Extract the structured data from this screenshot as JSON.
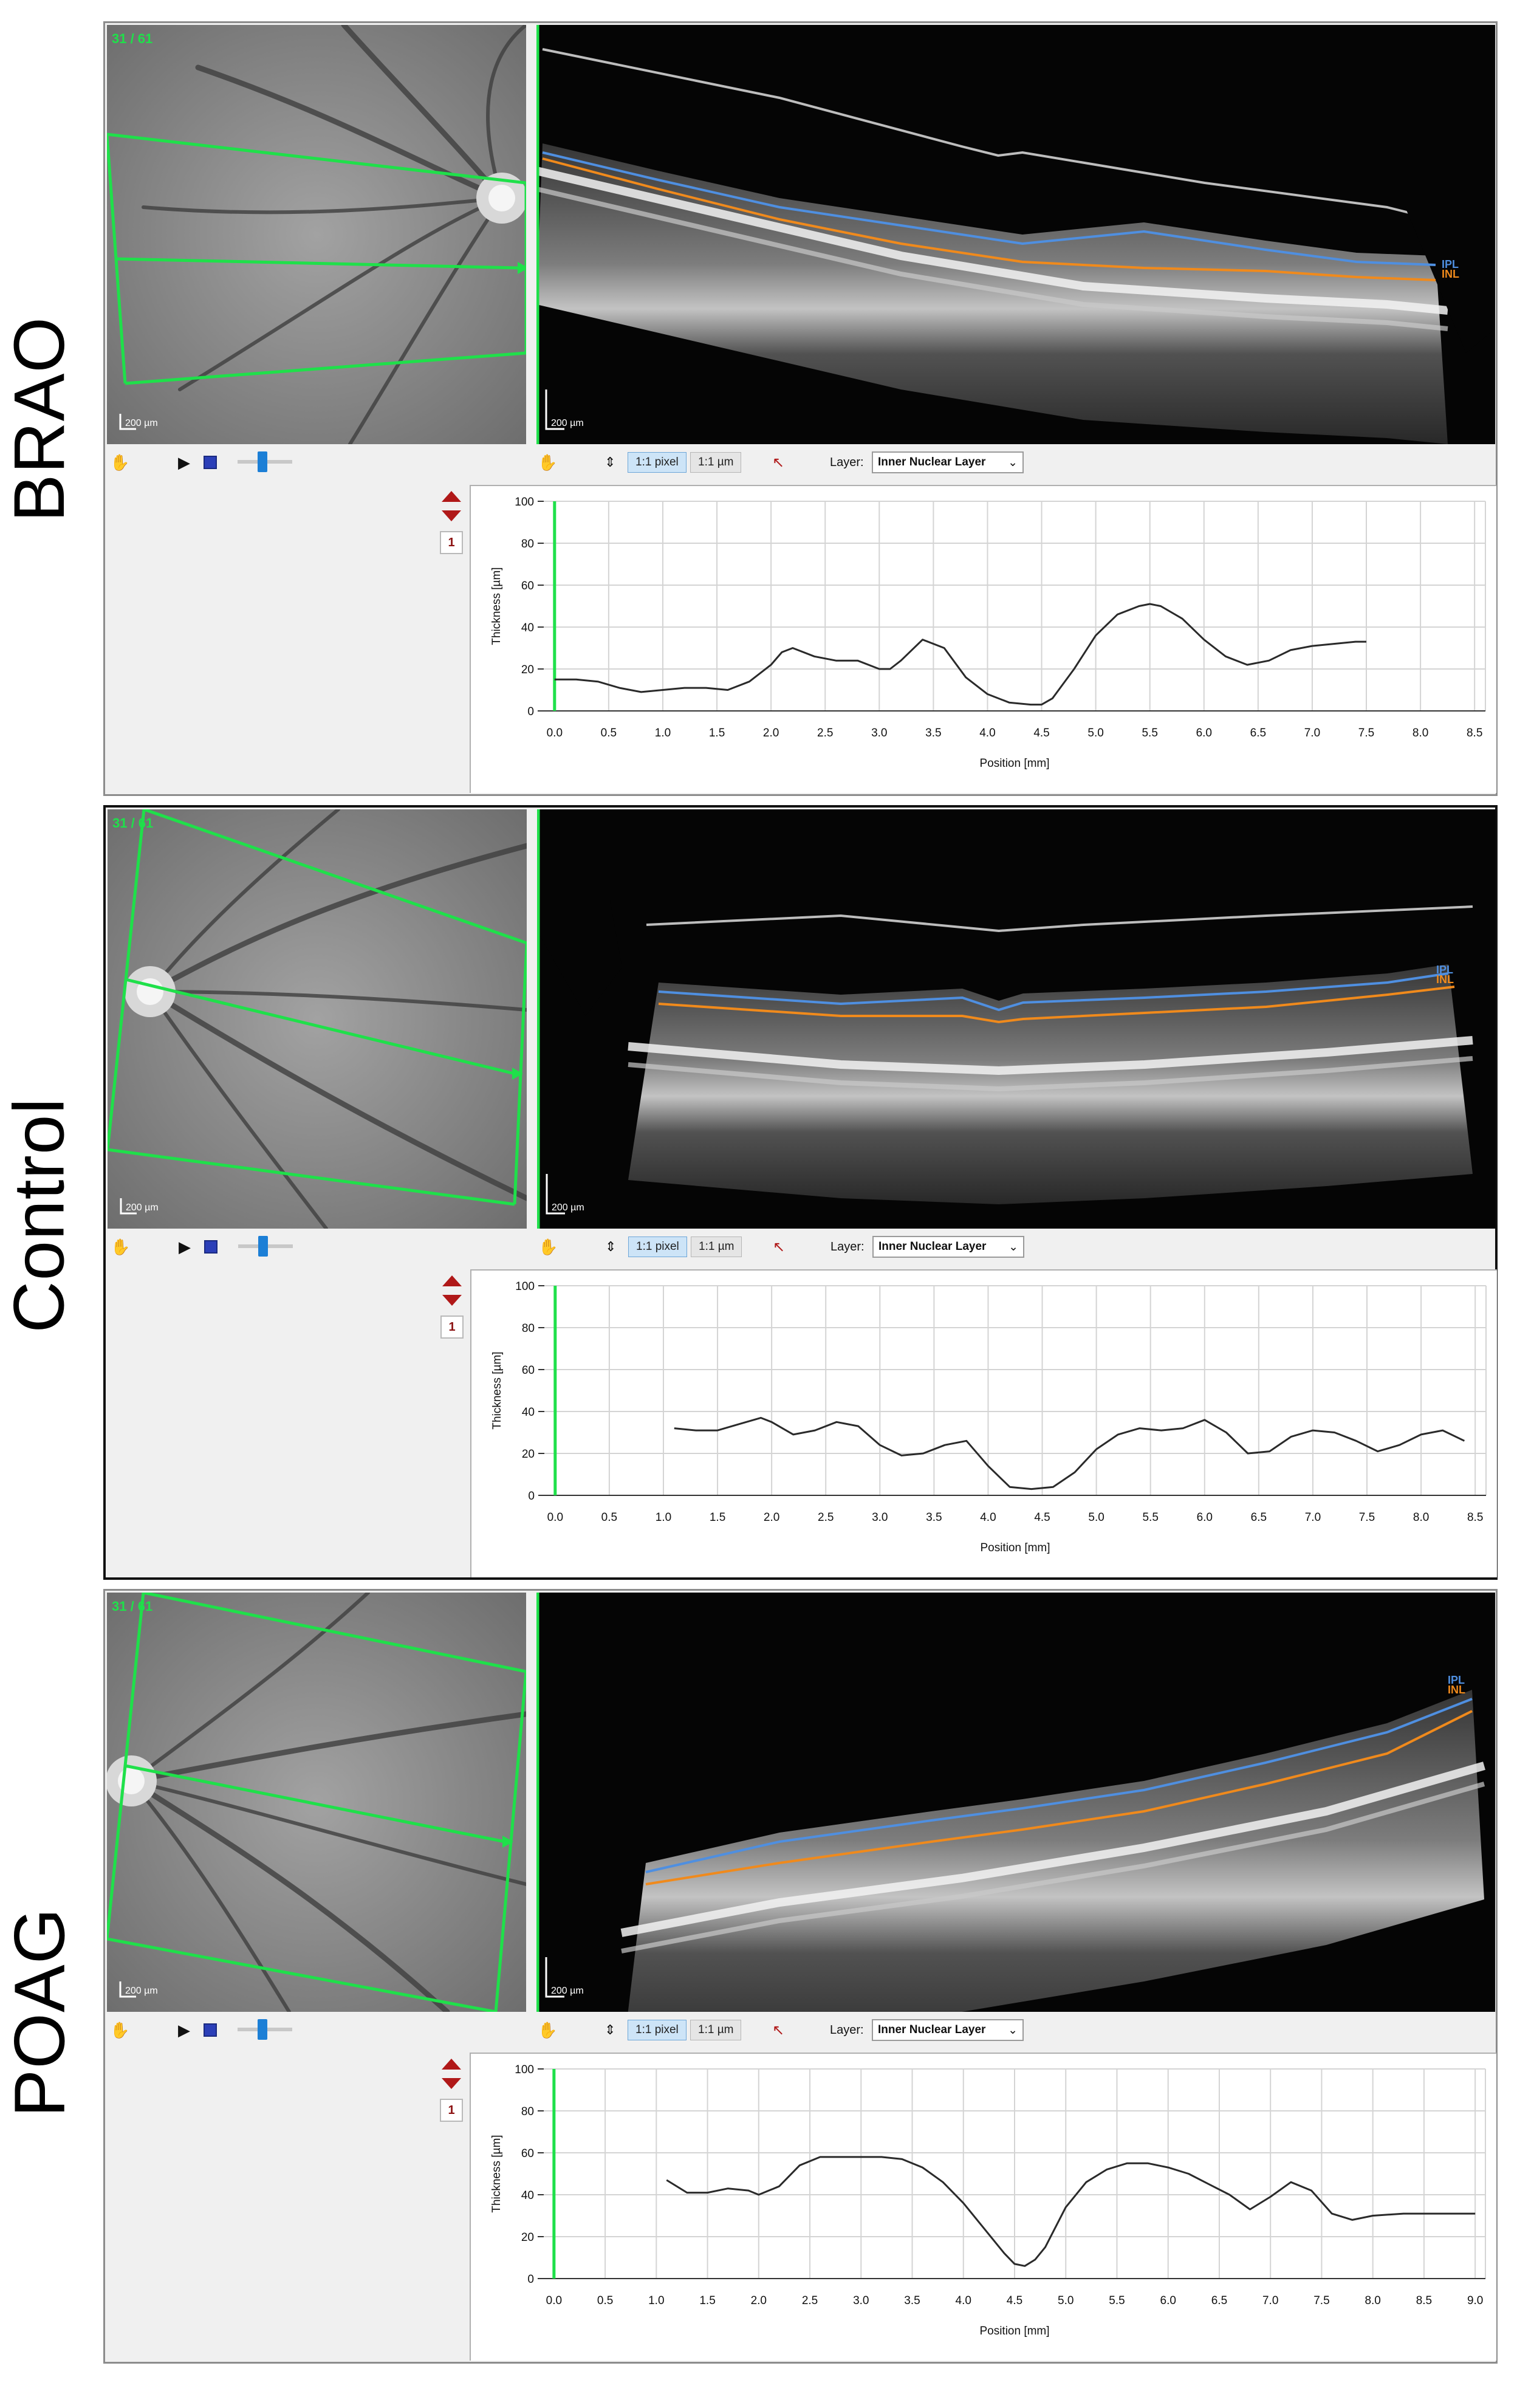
{
  "panels": [
    {
      "label": "BRAO",
      "fundus": {
        "slice_counter": "31 / 61",
        "scale": "200 µm"
      },
      "oct": {
        "scale": "200 µm",
        "layer_tags": [
          "IPL",
          "INL"
        ]
      },
      "toolbar": {
        "zoom_pixel": "1:1 pixel",
        "zoom_um": "1:1 µm",
        "layer_label": "Layer:",
        "layer_value": "Inner Nuclear Layer",
        "slider_value": 0.45,
        "active_zoom": "pixel"
      },
      "page_number": "1",
      "chart_data": {
        "type": "line",
        "ylabel": "Thickness [µm]",
        "xlabel": "Position [mm]",
        "xlim": [
          -0.1,
          8.6
        ],
        "ylim": [
          0,
          100
        ],
        "xticks": [
          "0.0",
          "0.5",
          "1.0",
          "1.5",
          "2.0",
          "2.5",
          "3.0",
          "3.5",
          "4.0",
          "4.5",
          "5.0",
          "5.5",
          "6.0",
          "6.5",
          "7.0",
          "7.5",
          "8.0",
          "8.5"
        ],
        "yticks": [
          "0",
          "20",
          "40",
          "60",
          "80",
          "100"
        ],
        "x": [
          0.0,
          0.2,
          0.4,
          0.6,
          0.8,
          1.0,
          1.2,
          1.4,
          1.6,
          1.8,
          2.0,
          2.1,
          2.2,
          2.4,
          2.6,
          2.8,
          3.0,
          3.1,
          3.2,
          3.4,
          3.6,
          3.8,
          4.0,
          4.2,
          4.4,
          4.5,
          4.6,
          4.8,
          5.0,
          5.2,
          5.4,
          5.5,
          5.6,
          5.8,
          6.0,
          6.2,
          6.4,
          6.6,
          6.8,
          7.0,
          7.2,
          7.4,
          7.5
        ],
        "y": [
          15,
          15,
          14,
          11,
          9,
          10,
          11,
          11,
          10,
          14,
          22,
          28,
          30,
          26,
          24,
          24,
          20,
          20,
          24,
          34,
          30,
          16,
          8,
          4,
          3,
          3,
          6,
          20,
          36,
          46,
          50,
          51,
          50,
          44,
          34,
          26,
          22,
          24,
          29,
          31,
          32,
          33,
          33
        ]
      }
    },
    {
      "label": "Control",
      "fundus": {
        "slice_counter": "31 / 61",
        "scale": "200 µm"
      },
      "oct": {
        "scale": "200 µm",
        "layer_tags": [
          "IPL",
          "INL"
        ]
      },
      "toolbar": {
        "zoom_pixel": "1:1 pixel",
        "zoom_um": "1:1 µm",
        "layer_label": "Layer:",
        "layer_value": "Inner Nuclear Layer",
        "slider_value": 0.45,
        "active_zoom": "pixel"
      },
      "page_number": "1",
      "chart_data": {
        "type": "line",
        "ylabel": "Thickness [µm]",
        "xlabel": "Position [mm]",
        "xlim": [
          -0.1,
          8.6
        ],
        "ylim": [
          0,
          100
        ],
        "xticks": [
          "0.0",
          "0.5",
          "1.0",
          "1.5",
          "2.0",
          "2.5",
          "3.0",
          "3.5",
          "4.0",
          "4.5",
          "5.0",
          "5.5",
          "6.0",
          "6.5",
          "7.0",
          "7.5",
          "8.0",
          "8.5"
        ],
        "yticks": [
          "0",
          "20",
          "40",
          "60",
          "80",
          "100"
        ],
        "x": [
          1.1,
          1.3,
          1.5,
          1.7,
          1.9,
          2.0,
          2.2,
          2.4,
          2.6,
          2.8,
          3.0,
          3.2,
          3.4,
          3.6,
          3.8,
          4.0,
          4.2,
          4.4,
          4.6,
          4.8,
          5.0,
          5.2,
          5.4,
          5.6,
          5.8,
          6.0,
          6.2,
          6.4,
          6.6,
          6.8,
          7.0,
          7.2,
          7.4,
          7.6,
          7.8,
          8.0,
          8.2,
          8.4
        ],
        "y": [
          32,
          31,
          31,
          34,
          37,
          35,
          29,
          31,
          35,
          33,
          24,
          19,
          20,
          24,
          26,
          14,
          4,
          3,
          4,
          11,
          22,
          29,
          32,
          31,
          32,
          36,
          30,
          20,
          21,
          28,
          31,
          30,
          26,
          21,
          24,
          29,
          31,
          26
        ]
      }
    },
    {
      "label": "POAG",
      "fundus": {
        "slice_counter": "31 / 61",
        "scale": "200 µm"
      },
      "oct": {
        "scale": "200 µm",
        "layer_tags": [
          "IPL",
          "INL"
        ]
      },
      "toolbar": {
        "zoom_pixel": "1:1 pixel",
        "zoom_um": "1:1 µm",
        "layer_label": "Layer:",
        "layer_value": "Inner Nuclear Layer",
        "slider_value": 0.45,
        "active_zoom": "pixel"
      },
      "page_number": "1",
      "chart_data": {
        "type": "line",
        "ylabel": "Thickness [µm]",
        "xlabel": "Position [mm]",
        "xlim": [
          -0.1,
          9.1
        ],
        "ylim": [
          0,
          100
        ],
        "xticks": [
          "0.0",
          "0.5",
          "1.0",
          "1.5",
          "2.0",
          "2.5",
          "3.0",
          "3.5",
          "4.0",
          "4.5",
          "5.0",
          "5.5",
          "6.0",
          "6.5",
          "7.0",
          "7.5",
          "8.0",
          "8.5",
          "9.0"
        ],
        "yticks": [
          "0",
          "20",
          "40",
          "60",
          "80",
          "100"
        ],
        "x": [
          1.1,
          1.3,
          1.5,
          1.7,
          1.9,
          2.0,
          2.2,
          2.4,
          2.6,
          2.8,
          3.0,
          3.2,
          3.4,
          3.6,
          3.8,
          4.0,
          4.2,
          4.4,
          4.5,
          4.6,
          4.7,
          4.8,
          5.0,
          5.2,
          5.4,
          5.6,
          5.8,
          6.0,
          6.2,
          6.4,
          6.6,
          6.8,
          7.0,
          7.2,
          7.4,
          7.6,
          7.8,
          8.0,
          8.3,
          8.6,
          9.0
        ],
        "y": [
          47,
          41,
          41,
          43,
          42,
          40,
          44,
          54,
          58,
          58,
          58,
          58,
          57,
          53,
          46,
          36,
          24,
          12,
          7,
          6,
          9,
          15,
          34,
          46,
          52,
          55,
          55,
          53,
          50,
          45,
          40,
          33,
          39,
          46,
          42,
          31,
          28,
          30,
          31,
          31,
          31
        ]
      }
    }
  ]
}
